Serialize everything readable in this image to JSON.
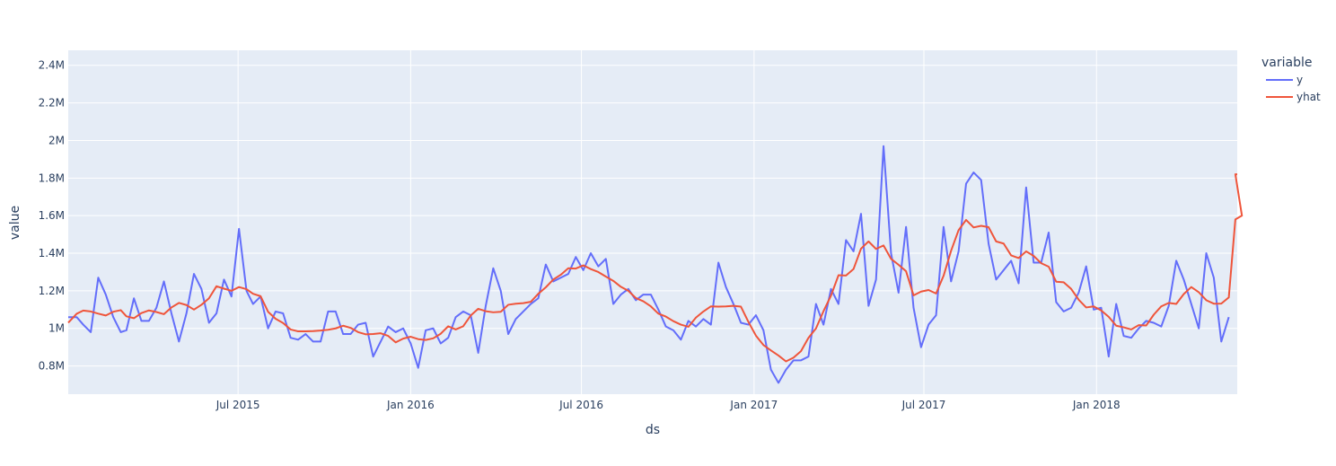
{
  "chart_data": {
    "type": "line",
    "title": "",
    "xlabel": "ds",
    "ylabel": "value",
    "xlim": [
      "2015-01-01",
      "2018-05-31"
    ],
    "ylim": [
      0.65,
      2.48
    ],
    "x_ticks": [
      {
        "date": "2015-07-01",
        "label": "Jul 2015"
      },
      {
        "date": "2016-01-01",
        "label": "Jan 2016"
      },
      {
        "date": "2016-07-01",
        "label": "Jul 2016"
      },
      {
        "date": "2017-01-01",
        "label": "Jan 2017"
      },
      {
        "date": "2017-07-01",
        "label": "Jul 2017"
      },
      {
        "date": "2018-01-01",
        "label": "Jan 2018"
      }
    ],
    "y_ticks": [
      {
        "value": 0.8,
        "label": "0.8M"
      },
      {
        "value": 1.0,
        "label": "1M"
      },
      {
        "value": 1.2,
        "label": "1.2M"
      },
      {
        "value": 1.4,
        "label": "1.4M"
      },
      {
        "value": 1.6,
        "label": "1.6M"
      },
      {
        "value": 1.8,
        "label": "1.8M"
      },
      {
        "value": 2.0,
        "label": "2M"
      },
      {
        "value": 2.2,
        "label": "2.2M"
      },
      {
        "value": 2.4,
        "label": "2.4M"
      }
    ],
    "grid": true,
    "legend": {
      "title": "variable",
      "position": "right"
    },
    "series": [
      {
        "name": "y",
        "color": "#636efa",
        "points": [
          [
            "2015-01-01",
            1.06
          ],
          [
            "2015-01-10",
            1.06
          ],
          [
            "2015-01-17",
            1.02
          ],
          [
            "2015-01-25",
            0.98
          ],
          [
            "2015-02-02",
            1.27
          ],
          [
            "2015-02-10",
            1.18
          ],
          [
            "2015-02-18",
            1.06
          ],
          [
            "2015-02-26",
            0.98
          ],
          [
            "2015-03-04",
            0.99
          ],
          [
            "2015-03-12",
            1.16
          ],
          [
            "2015-03-20",
            1.04
          ],
          [
            "2015-03-28",
            1.04
          ],
          [
            "2015-04-05",
            1.11
          ],
          [
            "2015-04-13",
            1.25
          ],
          [
            "2015-04-21",
            1.08
          ],
          [
            "2015-04-29",
            0.93
          ],
          [
            "2015-05-07",
            1.08
          ],
          [
            "2015-05-15",
            1.29
          ],
          [
            "2015-05-23",
            1.21
          ],
          [
            "2015-05-31",
            1.03
          ],
          [
            "2015-06-08",
            1.08
          ],
          [
            "2015-06-16",
            1.26
          ],
          [
            "2015-06-24",
            1.17
          ],
          [
            "2015-07-02",
            1.53
          ],
          [
            "2015-07-10",
            1.2
          ],
          [
            "2015-07-17",
            1.13
          ],
          [
            "2015-07-25",
            1.17
          ],
          [
            "2015-08-02",
            1.0
          ],
          [
            "2015-08-10",
            1.09
          ],
          [
            "2015-08-18",
            1.08
          ],
          [
            "2015-08-26",
            0.95
          ],
          [
            "2015-09-03",
            0.94
          ],
          [
            "2015-09-11",
            0.97
          ],
          [
            "2015-09-19",
            0.93
          ],
          [
            "2015-09-27",
            0.93
          ],
          [
            "2015-10-05",
            1.09
          ],
          [
            "2015-10-13",
            1.09
          ],
          [
            "2015-10-21",
            0.97
          ],
          [
            "2015-10-29",
            0.97
          ],
          [
            "2015-11-06",
            1.02
          ],
          [
            "2015-11-14",
            1.03
          ],
          [
            "2015-11-22",
            0.85
          ],
          [
            "2015-11-30",
            0.93
          ],
          [
            "2015-12-08",
            1.01
          ],
          [
            "2015-12-16",
            0.98
          ],
          [
            "2015-12-24",
            1.0
          ],
          [
            "2016-01-01",
            0.92
          ],
          [
            "2016-01-09",
            0.79
          ],
          [
            "2016-01-17",
            0.99
          ],
          [
            "2016-01-25",
            1.0
          ],
          [
            "2016-02-02",
            0.92
          ],
          [
            "2016-02-10",
            0.95
          ],
          [
            "2016-02-18",
            1.06
          ],
          [
            "2016-02-26",
            1.09
          ],
          [
            "2016-03-05",
            1.07
          ],
          [
            "2016-03-13",
            0.87
          ],
          [
            "2016-03-21",
            1.12
          ],
          [
            "2016-03-29",
            1.32
          ],
          [
            "2016-04-06",
            1.2
          ],
          [
            "2016-04-14",
            0.97
          ],
          [
            "2016-04-22",
            1.05
          ],
          [
            "2016-04-30",
            1.09
          ],
          [
            "2016-05-08",
            1.13
          ],
          [
            "2016-05-16",
            1.16
          ],
          [
            "2016-05-24",
            1.34
          ],
          [
            "2016-06-01",
            1.25
          ],
          [
            "2016-06-09",
            1.27
          ],
          [
            "2016-06-17",
            1.29
          ],
          [
            "2016-06-25",
            1.38
          ],
          [
            "2016-07-03",
            1.31
          ],
          [
            "2016-07-11",
            1.4
          ],
          [
            "2016-07-19",
            1.33
          ],
          [
            "2016-07-27",
            1.37
          ],
          [
            "2016-08-04",
            1.13
          ],
          [
            "2016-08-12",
            1.18
          ],
          [
            "2016-08-20",
            1.21
          ],
          [
            "2016-08-28",
            1.15
          ],
          [
            "2016-09-05",
            1.18
          ],
          [
            "2016-09-13",
            1.18
          ],
          [
            "2016-09-21",
            1.1
          ],
          [
            "2016-09-29",
            1.01
          ],
          [
            "2016-10-07",
            0.99
          ],
          [
            "2016-10-15",
            0.94
          ],
          [
            "2016-10-23",
            1.04
          ],
          [
            "2016-10-31",
            1.01
          ],
          [
            "2016-11-08",
            1.05
          ],
          [
            "2016-11-16",
            1.02
          ],
          [
            "2016-11-24",
            1.35
          ],
          [
            "2016-12-02",
            1.22
          ],
          [
            "2016-12-10",
            1.13
          ],
          [
            "2016-12-18",
            1.03
          ],
          [
            "2016-12-26",
            1.02
          ],
          [
            "2017-01-03",
            1.07
          ],
          [
            "2017-01-11",
            0.99
          ],
          [
            "2017-01-19",
            0.78
          ],
          [
            "2017-01-27",
            0.71
          ],
          [
            "2017-02-04",
            0.78
          ],
          [
            "2017-02-12",
            0.83
          ],
          [
            "2017-02-20",
            0.83
          ],
          [
            "2017-02-28",
            0.85
          ],
          [
            "2017-03-08",
            1.13
          ],
          [
            "2017-03-16",
            1.02
          ],
          [
            "2017-03-24",
            1.21
          ],
          [
            "2017-04-01",
            1.13
          ],
          [
            "2017-04-09",
            1.47
          ],
          [
            "2017-04-17",
            1.41
          ],
          [
            "2017-04-25",
            1.61
          ],
          [
            "2017-05-03",
            1.12
          ],
          [
            "2017-05-11",
            1.26
          ],
          [
            "2017-05-19",
            1.97
          ],
          [
            "2017-05-27",
            1.4
          ],
          [
            "2017-06-04",
            1.19
          ],
          [
            "2017-06-12",
            1.54
          ],
          [
            "2017-06-20",
            1.11
          ],
          [
            "2017-06-28",
            0.9
          ],
          [
            "2017-07-06",
            1.02
          ],
          [
            "2017-07-14",
            1.07
          ],
          [
            "2017-07-22",
            1.54
          ],
          [
            "2017-07-30",
            1.25
          ],
          [
            "2017-08-07",
            1.41
          ],
          [
            "2017-08-15",
            1.77
          ],
          [
            "2017-08-23",
            1.83
          ],
          [
            "2017-08-31",
            1.79
          ],
          [
            "2017-09-08",
            1.45
          ],
          [
            "2017-09-16",
            1.26
          ],
          [
            "2017-09-24",
            1.31
          ],
          [
            "2017-10-02",
            1.36
          ],
          [
            "2017-10-10",
            1.24
          ],
          [
            "2017-10-18",
            1.75
          ],
          [
            "2017-10-26",
            1.35
          ],
          [
            "2017-11-03",
            1.35
          ],
          [
            "2017-11-11",
            1.51
          ],
          [
            "2017-11-19",
            1.14
          ],
          [
            "2017-11-27",
            1.09
          ],
          [
            "2017-12-05",
            1.11
          ],
          [
            "2017-12-13",
            1.19
          ],
          [
            "2017-12-21",
            1.33
          ],
          [
            "2017-12-29",
            1.1
          ],
          [
            "2018-01-06",
            1.11
          ],
          [
            "2018-01-14",
            0.85
          ],
          [
            "2018-01-22",
            1.13
          ],
          [
            "2018-01-30",
            0.96
          ],
          [
            "2018-02-07",
            0.95
          ],
          [
            "2018-02-15",
            1.0
          ],
          [
            "2018-02-23",
            1.04
          ],
          [
            "2018-03-03",
            1.03
          ],
          [
            "2018-03-11",
            1.01
          ],
          [
            "2018-03-19",
            1.12
          ],
          [
            "2018-03-27",
            1.36
          ],
          [
            "2018-04-04",
            1.26
          ],
          [
            "2018-04-12",
            1.13
          ],
          [
            "2018-04-20",
            1.0
          ],
          [
            "2018-04-28",
            1.4
          ],
          [
            "2018-05-06",
            1.27
          ],
          [
            "2018-05-14",
            0.93
          ],
          [
            "2018-05-22",
            1.06
          ]
        ]
      },
      {
        "name": "yhat",
        "color": "#ef553b",
        "points": []
      }
    ]
  }
}
